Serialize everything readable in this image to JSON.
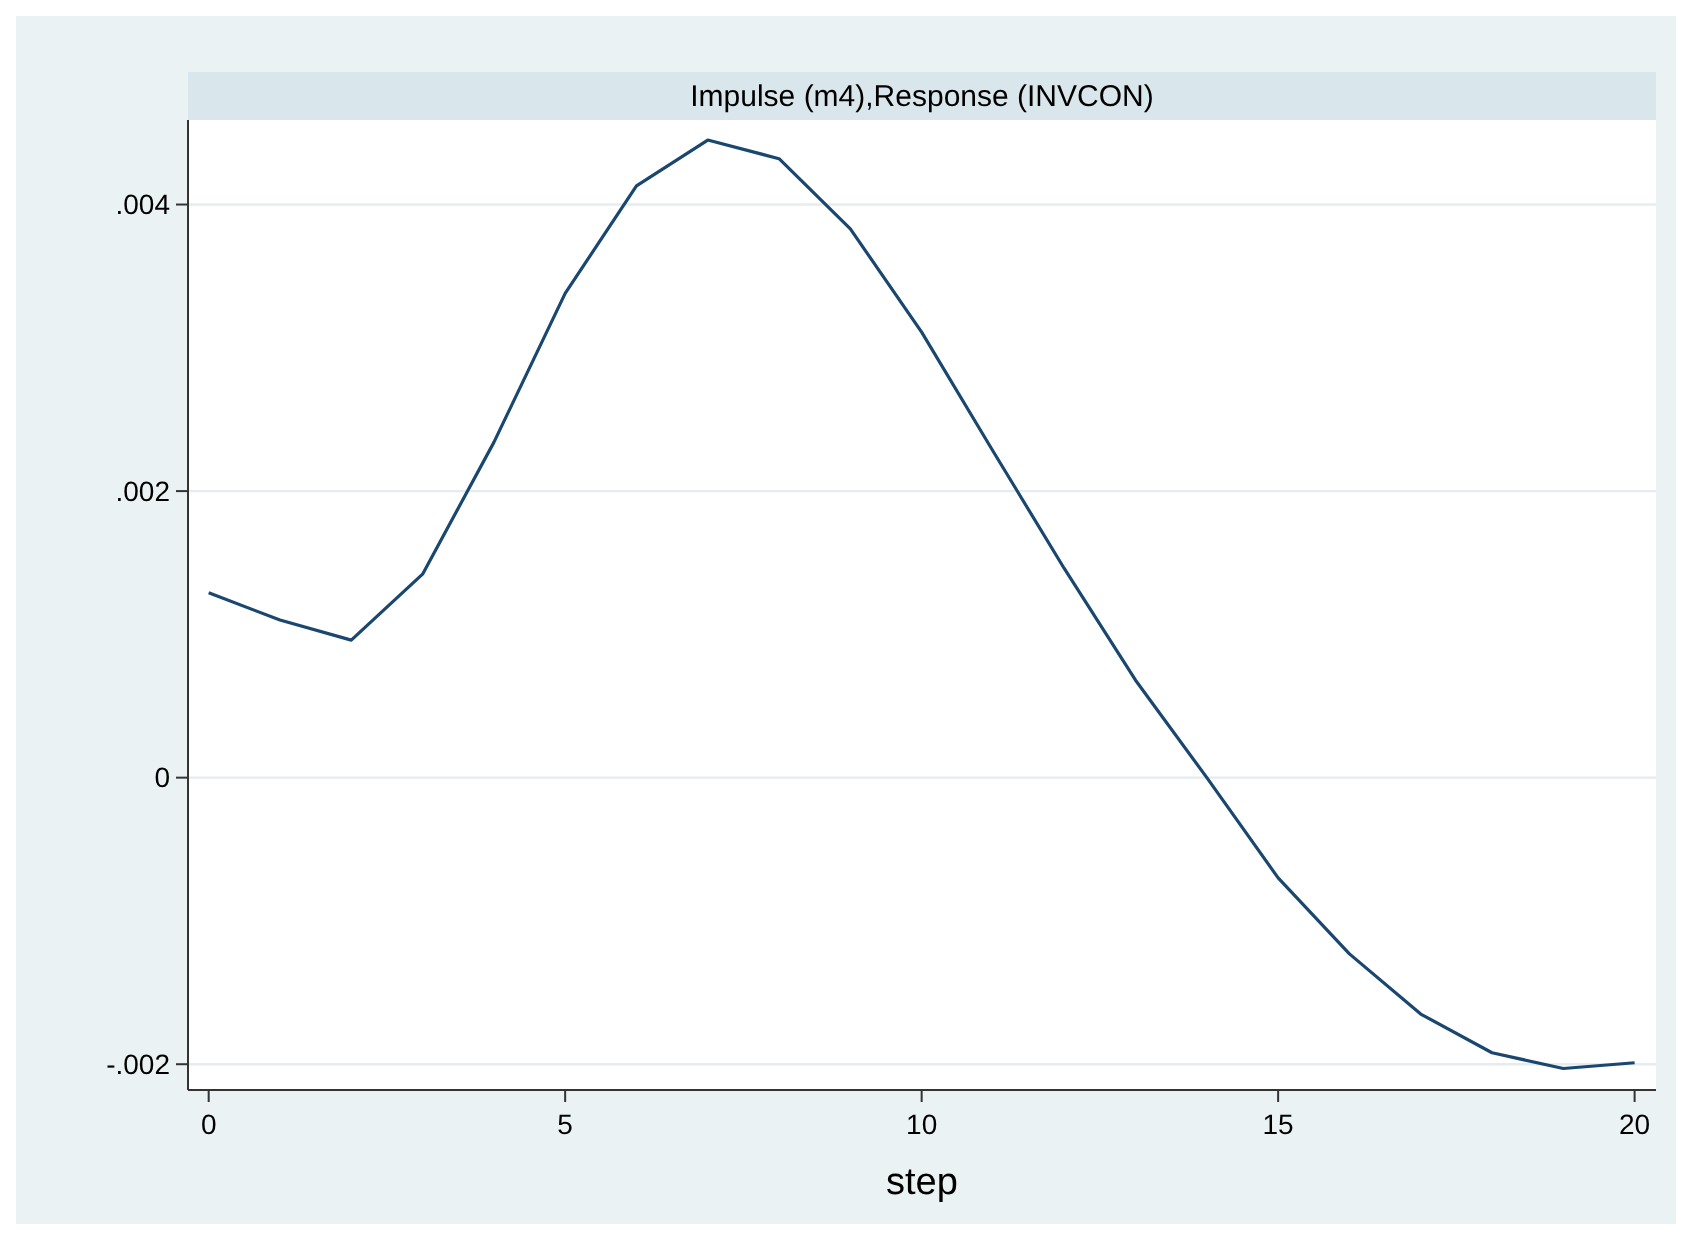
{
  "chart_data": {
    "type": "line",
    "title": "Impulse (m4),Response (INVCON)",
    "xlabel": "step",
    "x": [
      0,
      1,
      2,
      3,
      4,
      5,
      6,
      7,
      8,
      9,
      10,
      11,
      12,
      13,
      14,
      15,
      16,
      17,
      18,
      19,
      20
    ],
    "series": [
      {
        "color": "#1a476f",
        "values": [
          0.00129,
          0.0011,
          0.00096,
          0.00142,
          0.00234,
          0.00338,
          0.00413,
          0.00445,
          0.00432,
          0.00383,
          0.00311,
          0.00228,
          0.00146,
          0.00068,
          0,
          -0.0007,
          -0.00123,
          -0.00165,
          -0.00192,
          -0.00203,
          -0.00199
        ]
      }
    ],
    "xlim": [
      -0.29,
      20.3
    ],
    "ylim": [
      -0.00218,
      0.00459
    ],
    "xticks": [
      0,
      5,
      10,
      15,
      20
    ],
    "yticks": [
      {
        "value": -0.002,
        "label": "-.002"
      },
      {
        "value": 0,
        "label": "0"
      },
      {
        "value": 0.002,
        "label": ".002"
      },
      {
        "value": 0.004,
        "label": ".004"
      }
    ],
    "grid": "y",
    "marker": "none",
    "line_style": "solid"
  }
}
